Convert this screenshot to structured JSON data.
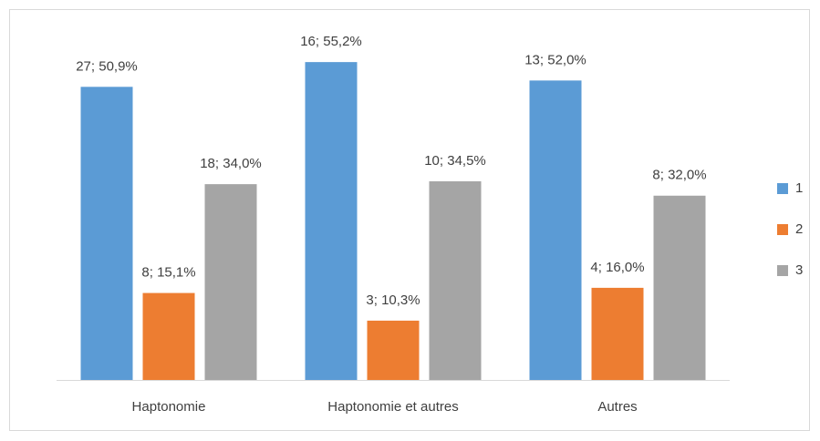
{
  "chart_data": {
    "type": "bar",
    "categories": [
      "Haptonomie",
      "Haptonomie et autres",
      "Autres"
    ],
    "series": [
      {
        "name": "1",
        "color": "#5b9bd5",
        "values": [
          50.9,
          55.2,
          52.0
        ],
        "value_labels": [
          "27; 50,9%",
          "16; 55,2%",
          "13; 52,0%"
        ]
      },
      {
        "name": "2",
        "color": "#ed7d31",
        "values": [
          15.1,
          10.3,
          16.0
        ],
        "value_labels": [
          "8; 15,1%",
          "3; 10,3%",
          "4; 16,0%"
        ]
      },
      {
        "name": "3",
        "color": "#a5a5a5",
        "values": [
          34.0,
          34.5,
          32.0
        ],
        "value_labels": [
          "18; 34,0%",
          "10; 34,5%",
          "8; 32,0%"
        ]
      }
    ],
    "ylim": [
      0,
      60
    ],
    "legend": "right"
  }
}
